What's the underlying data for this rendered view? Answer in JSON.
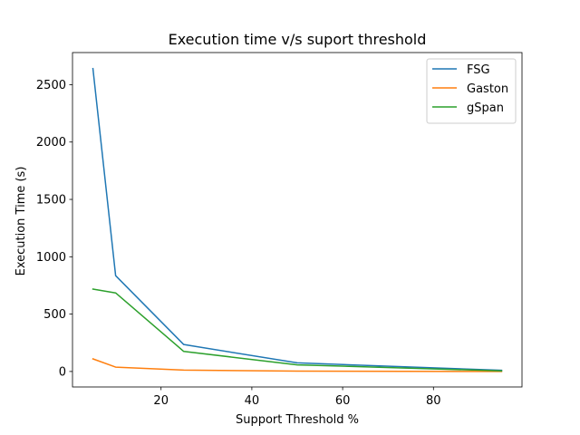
{
  "chart_data": {
    "type": "line",
    "title": "Execution time v/s suport threshold",
    "xlabel": "Support Threshold %",
    "ylabel": "Execution Time (s)",
    "xlim": [
      0.5,
      99.5
    ],
    "ylim": [
      -135,
      2780
    ],
    "x_ticks": [
      20,
      40,
      60,
      80
    ],
    "y_ticks": [
      0,
      500,
      1000,
      1500,
      2000,
      2500
    ],
    "grid": false,
    "legend_position": "top-right",
    "x": [
      5,
      10,
      25,
      50,
      95
    ],
    "series": [
      {
        "name": "FSG",
        "color": "#1f77b4",
        "values": [
          2640,
          835,
          235,
          75,
          10
        ]
      },
      {
        "name": "Gaston",
        "color": "#ff7f0e",
        "values": [
          110,
          38,
          12,
          3,
          0
        ]
      },
      {
        "name": "gSpan",
        "color": "#2ca02c",
        "values": [
          718,
          685,
          175,
          58,
          5
        ]
      }
    ]
  }
}
